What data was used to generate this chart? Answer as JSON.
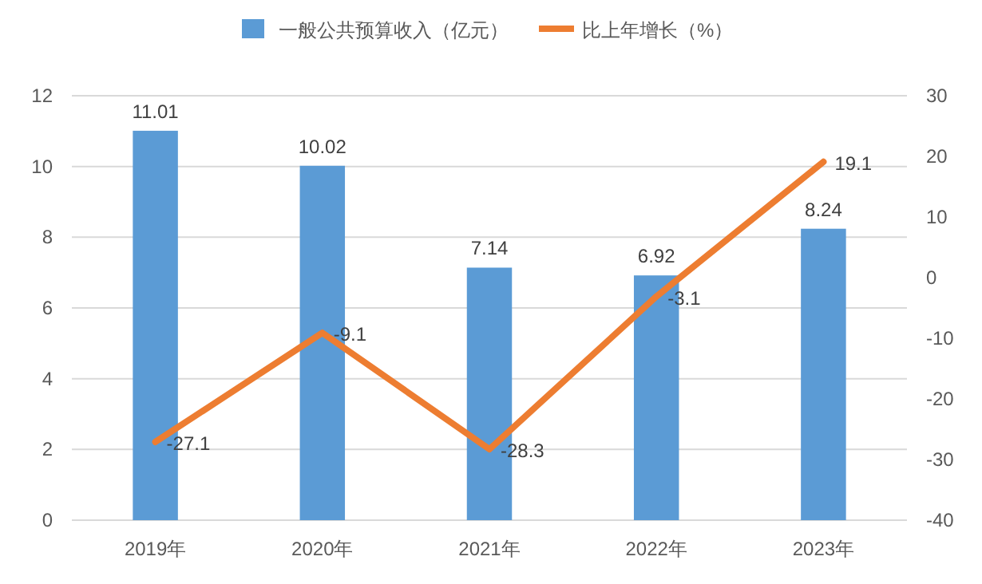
{
  "chart_data": {
    "type": "bar",
    "categories": [
      "2019年",
      "2020年",
      "2021年",
      "2022年",
      "2023年"
    ],
    "series": [
      {
        "name": "一般公共预算收入（亿元）",
        "color": "#5b9bd5",
        "values": [
          11.01,
          10.02,
          7.14,
          6.92,
          8.24
        ]
      },
      {
        "name": "比上年增长（%）",
        "type": "line",
        "axis": "y2",
        "color": "#ed7d31",
        "values": [
          -27.1,
          -9.1,
          -28.3,
          -3.1,
          19.1
        ]
      }
    ],
    "ylim": [
      0,
      12
    ],
    "yticks": [
      0,
      2,
      4,
      6,
      8,
      10,
      12
    ],
    "y2lim": [
      -40,
      30
    ],
    "y2ticks": [
      -40,
      -30,
      -20,
      -10,
      0,
      10,
      20,
      30
    ],
    "grid": "y",
    "legend": "top",
    "data_labels": true
  }
}
